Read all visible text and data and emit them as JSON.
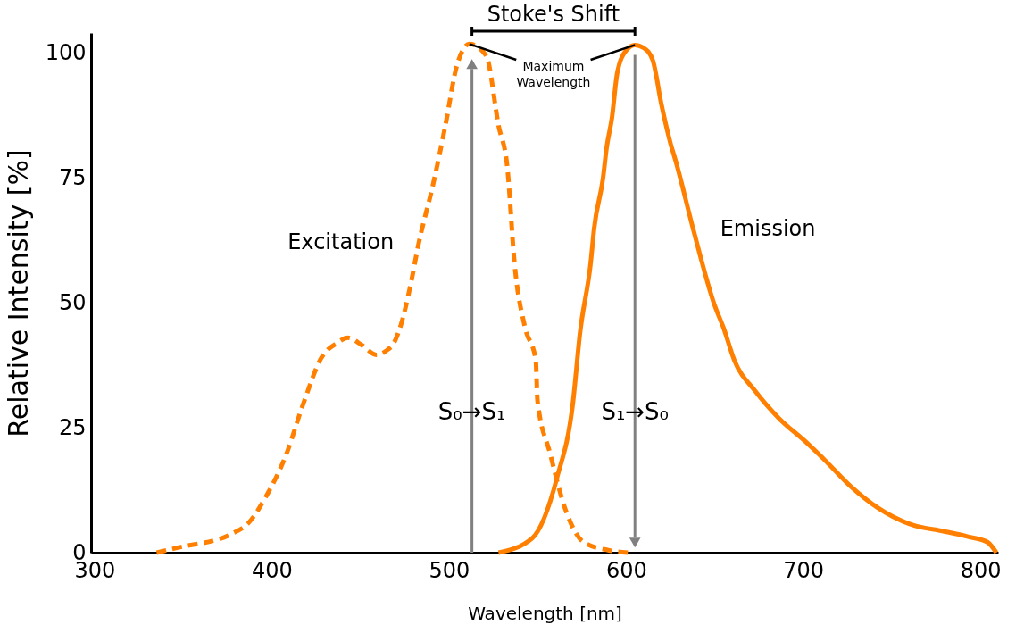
{
  "chart_data": {
    "type": "line",
    "xlabel": "Wavelength [nm]",
    "ylabel": "Relative Intensity [%]",
    "xlim": [
      298,
      810
    ],
    "xticks": [
      300,
      400,
      500,
      600,
      700,
      800
    ],
    "ylim": [
      0,
      104
    ],
    "yticks": [
      0,
      25,
      50,
      75,
      100
    ],
    "grid": false,
    "ref_lines": [
      {
        "axis": "x",
        "value": 513,
        "label": "S₀→S₁",
        "color": "#808080"
      },
      {
        "axis": "x",
        "value": 605,
        "label": "S₁→S₀",
        "color": "#808080"
      }
    ],
    "series": [
      {
        "name": "Excitation",
        "color": "#ff8000",
        "line_style": "dashed",
        "x": [
          335,
          347,
          377,
          387,
          397,
          408,
          418,
          428,
          437,
          443,
          451,
          459,
          465,
          469,
          473,
          478,
          483,
          491,
          498,
          504.5,
          511.6,
          521,
          528,
          533,
          537,
          543,
          549,
          550,
          557,
          566,
          576,
          590,
          601
        ],
        "values": [
          0,
          1,
          3.7,
          6,
          11.4,
          19.5,
          30,
          39,
          42,
          43,
          41.5,
          39.6,
          40.5,
          42,
          45.7,
          53,
          62,
          73.6,
          85.5,
          97.5,
          101.8,
          99.5,
          85.5,
          77,
          58,
          45,
          38.6,
          30.4,
          20,
          8.4,
          2.1,
          0.5,
          0
        ]
      },
      {
        "name": "Emission",
        "color": "#ff8000",
        "line_style": "solid",
        "x": [
          528,
          547,
          561,
          570,
          574,
          580,
          582,
          587,
          589,
          592,
          595,
          600,
          605,
          610,
          615,
          620,
          625,
          628,
          638,
          650,
          655,
          661,
          673,
          686,
          702,
          712,
          727,
          742,
          762,
          779,
          793,
          804,
          809
        ],
        "values": [
          0,
          2.9,
          15,
          30,
          44,
          58,
          65,
          75,
          81,
          87,
          96,
          100.5,
          101.6,
          101,
          98.6,
          89.6,
          82,
          78.4,
          64.6,
          49.5,
          45,
          38.6,
          32.3,
          27,
          22,
          18.6,
          13.2,
          9,
          5.5,
          4.3,
          3.2,
          2.1,
          0
        ]
      }
    ],
    "annotations": [
      "Stoke's Shift",
      {
        "text": "Maximum\nWavelength",
        "x": 511.6,
        "y": 101.8
      }
    ]
  }
}
